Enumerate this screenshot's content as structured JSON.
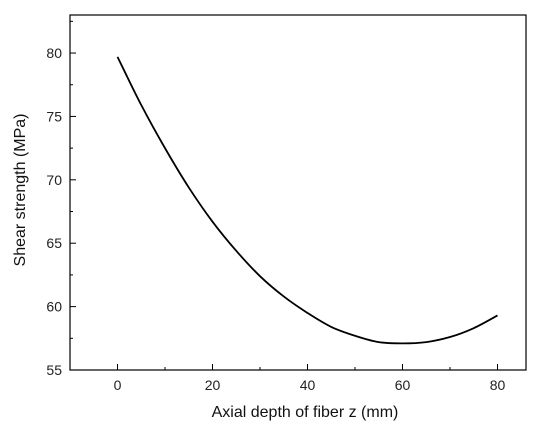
{
  "chart_data": {
    "type": "line",
    "title": "",
    "xlabel": "Axial depth of fiber z (mm)",
    "ylabel": "Shear strength (MPa)",
    "xlim": [
      -10,
      86
    ],
    "ylim": [
      55,
      83
    ],
    "x_ticks": [
      0,
      20,
      40,
      60,
      80
    ],
    "y_ticks": [
      55,
      60,
      65,
      70,
      75,
      80
    ],
    "x_tick_labels": [
      "0",
      "20",
      "40",
      "60",
      "80"
    ],
    "y_tick_labels": [
      "55",
      "60",
      "65",
      "70",
      "75",
      "80"
    ],
    "grid": false,
    "legend": "none",
    "series": [
      {
        "color": "#000000",
        "x": [
          0,
          5,
          10,
          15,
          20,
          25,
          30,
          35,
          40,
          45,
          50,
          55,
          60,
          65,
          70,
          75,
          80
        ],
        "y": [
          79.7,
          75.9,
          72.5,
          69.4,
          66.7,
          64.4,
          62.4,
          60.8,
          59.5,
          58.4,
          57.7,
          57.2,
          57.1,
          57.2,
          57.6,
          58.3,
          59.3
        ]
      }
    ]
  }
}
